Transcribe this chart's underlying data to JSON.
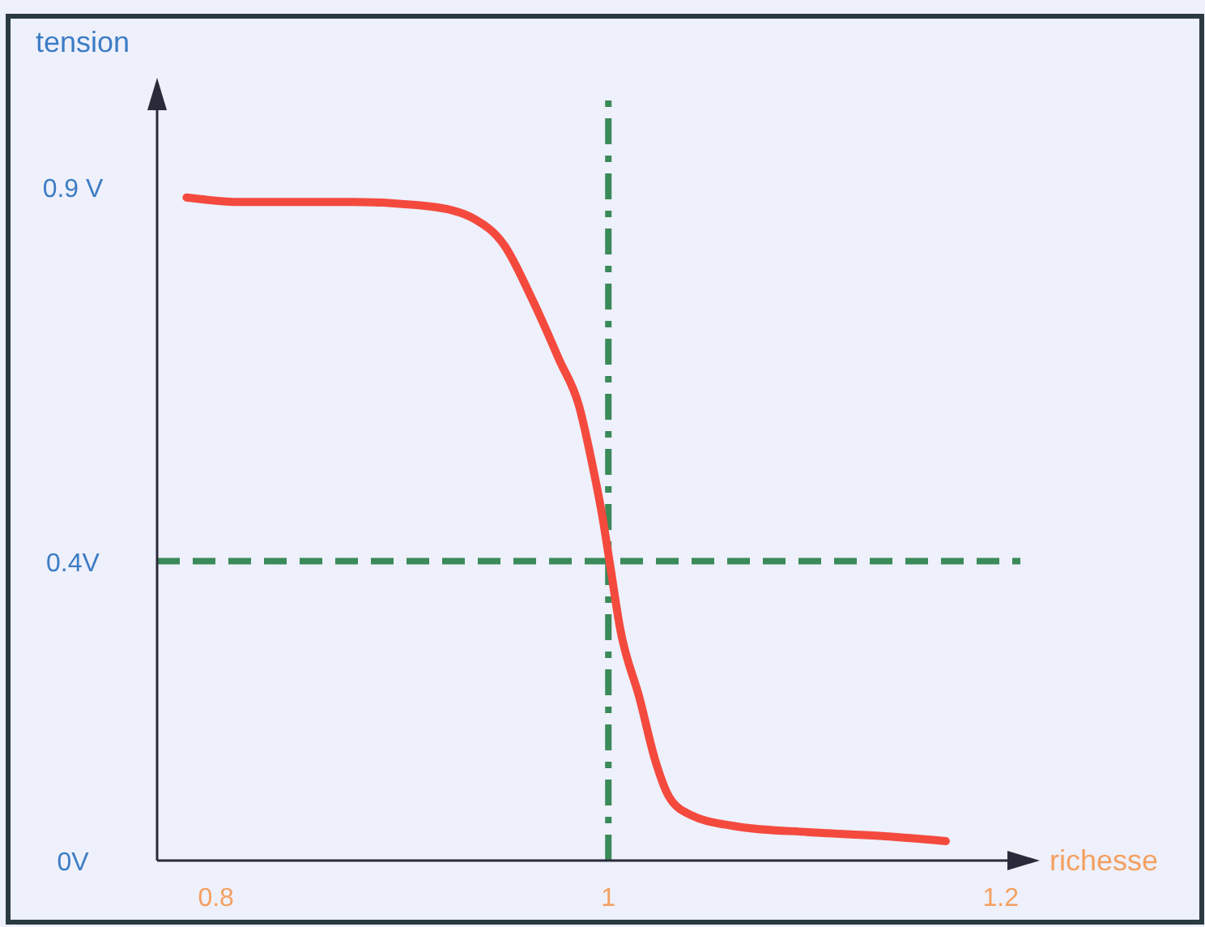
{
  "chart_data": {
    "type": "line",
    "xlabel": "richesse",
    "ylabel": "tension",
    "x": [
      0.785,
      0.813,
      0.87,
      0.909,
      0.932,
      0.947,
      0.961,
      0.975,
      0.985,
      0.992,
      0.997,
      1.001,
      1.006,
      1.016,
      1.024,
      1.031,
      1.042,
      1.067,
      1.102,
      1.138,
      1.172
    ],
    "series": [
      {
        "color": "#f44a3e",
        "values": [
          0.886,
          0.88,
          0.88,
          0.874,
          0.857,
          0.822,
          0.751,
          0.669,
          0.608,
          0.527,
          0.459,
          0.393,
          0.31,
          0.216,
          0.133,
          0.085,
          0.061,
          0.045,
          0.038,
          0.033,
          0.026
        ]
      }
    ],
    "xlim": [
      0.77,
      1.21
    ],
    "ylim": [
      0,
      1.02
    ],
    "xticks": [
      0.8,
      1,
      1.2
    ],
    "yticks": [
      {
        "value": 0,
        "label": "0V"
      },
      {
        "value": 0.4,
        "label": "0.4V"
      },
      {
        "value": 0.9,
        "label": "0.9 V"
      }
    ],
    "ref_lines": [
      {
        "axis": "y",
        "value": 0.4,
        "color": "#3a8a5a",
        "line_style": "dashed"
      },
      {
        "axis": "x",
        "value": 1,
        "color": "#3a8a5a",
        "line_style": "dashdot"
      }
    ],
    "grid": false,
    "marker": "none",
    "line_style": "solid"
  }
}
